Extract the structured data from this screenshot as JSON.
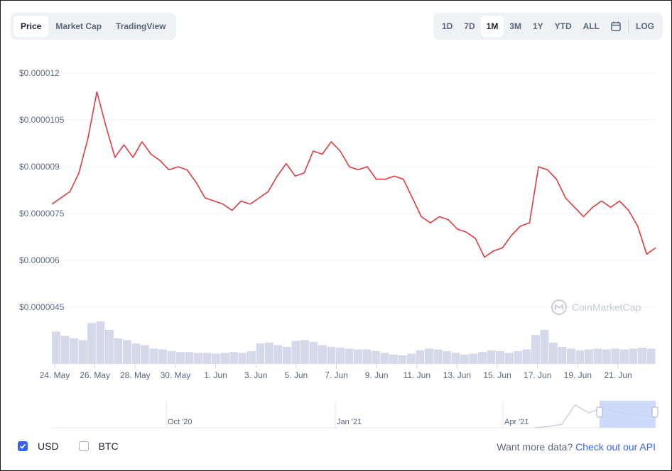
{
  "tabs": [
    {
      "label": "Price",
      "active": true
    },
    {
      "label": "Market Cap",
      "active": false
    },
    {
      "label": "TradingView",
      "active": false
    }
  ],
  "ranges": [
    {
      "label": "1D",
      "active": false
    },
    {
      "label": "7D",
      "active": false
    },
    {
      "label": "1M",
      "active": true
    },
    {
      "label": "3M",
      "active": false
    },
    {
      "label": "1Y",
      "active": false
    },
    {
      "label": "YTD",
      "active": false
    },
    {
      "label": "ALL",
      "active": false
    }
  ],
  "calendar_icon": "calendar-icon",
  "log_label": "LOG",
  "watermark": "CoinMarketCap",
  "colors": {
    "line": "#e03a3e",
    "volume": "#d5d9ea",
    "navigator_window": "#c7d3fa",
    "accent": "#3861fb"
  },
  "chart_data": {
    "type": "line",
    "series": [
      {
        "values": [
          7.8e-06,
          8e-06,
          8.2e-06,
          8.8e-06,
          9.9e-06,
          1.14e-05,
          1.03e-05,
          9.3e-06,
          9.7e-06,
          9.3e-06,
          9.8e-06,
          9.4e-06,
          9.2e-06,
          8.9e-06,
          9e-06,
          8.9e-06,
          8.5e-06,
          8e-06,
          7.9e-06,
          7.8e-06,
          7.6e-06,
          7.9e-06,
          7.8e-06,
          8e-06,
          8.2e-06,
          8.7e-06,
          9.1e-06,
          8.7e-06,
          8.8e-06,
          9.5e-06,
          9.4e-06,
          9.8e-06,
          9.5e-06,
          9e-06,
          8.9e-06,
          9e-06,
          8.6e-06,
          8.6e-06,
          8.7e-06,
          8.6e-06,
          8e-06,
          7.4e-06,
          7.2e-06,
          7.4e-06,
          7.3e-06,
          7e-06,
          6.9e-06,
          6.7e-06,
          6.1e-06,
          6.3e-06,
          6.4e-06,
          6.8e-06,
          7.1e-06,
          7.2e-06,
          9e-06,
          8.9e-06,
          8.6e-06,
          8e-06,
          7.7e-06,
          7.4e-06,
          7.7e-06,
          7.9e-06,
          7.7e-06,
          7.9e-06,
          7.6e-06,
          7.1e-06,
          6.2e-06,
          6.4e-06
        ]
      },
      {
        "name": "Volume",
        "values": [
          0.38,
          0.33,
          0.3,
          0.28,
          0.48,
          0.5,
          0.4,
          0.3,
          0.28,
          0.24,
          0.22,
          0.18,
          0.17,
          0.15,
          0.14,
          0.14,
          0.13,
          0.13,
          0.12,
          0.13,
          0.14,
          0.13,
          0.15,
          0.24,
          0.25,
          0.22,
          0.2,
          0.27,
          0.28,
          0.26,
          0.22,
          0.2,
          0.19,
          0.18,
          0.17,
          0.17,
          0.15,
          0.13,
          0.11,
          0.1,
          0.12,
          0.16,
          0.18,
          0.17,
          0.15,
          0.13,
          0.11,
          0.12,
          0.14,
          0.16,
          0.15,
          0.13,
          0.15,
          0.17,
          0.34,
          0.4,
          0.25,
          0.2,
          0.18,
          0.16,
          0.17,
          0.18,
          0.17,
          0.18,
          0.17,
          0.18,
          0.19,
          0.18
        ]
      }
    ],
    "x_ticks": [
      "24. May",
      "26. May",
      "28. May",
      "30. May",
      "1. Jun",
      "3. Jun",
      "5. Jun",
      "7. Jun",
      "9. Jun",
      "11. Jun",
      "13. Jun",
      "15. Jun",
      "17. Jun",
      "19. Jun",
      "21. Jun"
    ],
    "y_ticks": [
      "$0.0000045",
      "$0.000006",
      "$0.0000075",
      "$0.000009",
      "$0.0000105",
      "$0.000012"
    ],
    "ylim": [
      4.5e-06,
      1.2e-05
    ],
    "grid": true,
    "navigator": {
      "ticks": [
        "Oct '20",
        "Jan '21",
        "Apr '21"
      ],
      "values": [
        0.0,
        0.05,
        0.12,
        0.85,
        0.55,
        0.72,
        0.6,
        0.5,
        0.45,
        0.4
      ]
    }
  },
  "footer": {
    "usd_label": "USD",
    "btc_label": "BTC",
    "more_text": "Want more data?",
    "more_link": "Check out our API"
  }
}
